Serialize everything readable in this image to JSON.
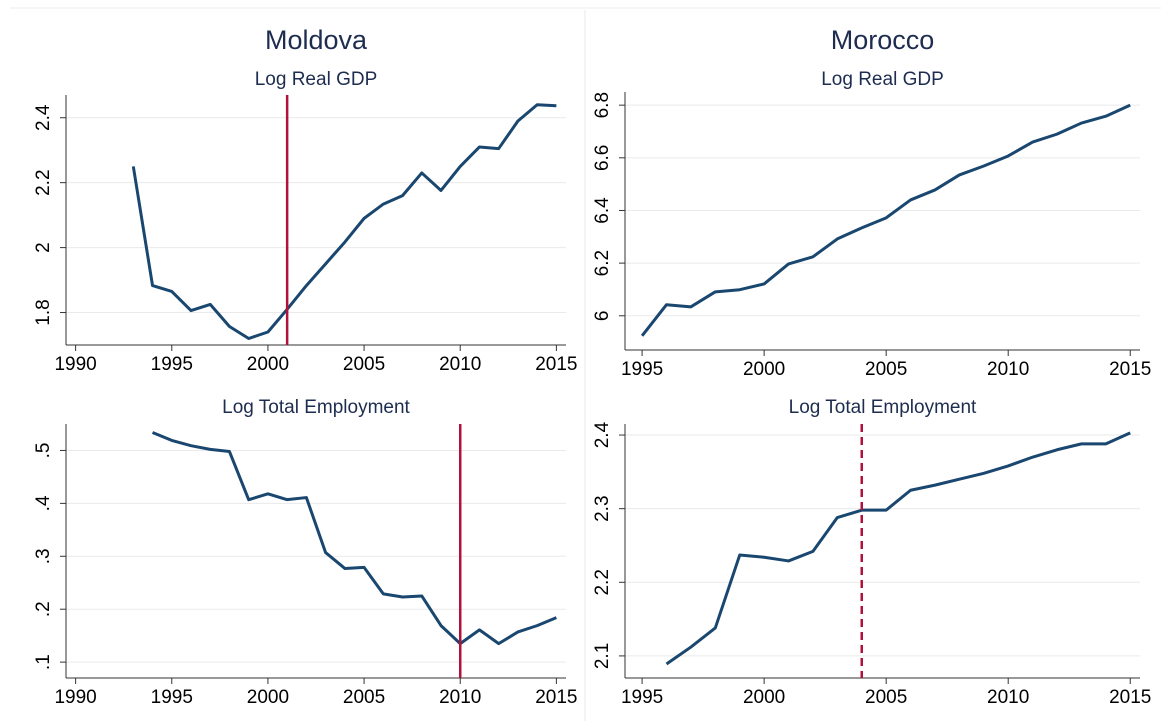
{
  "chart_data": [
    {
      "type": "line",
      "title": "Moldova",
      "subtitle": "Log Real GDP",
      "x": [
        1993,
        1994,
        1995,
        1996,
        1997,
        1998,
        1999,
        2000,
        2001,
        2002,
        2003,
        2004,
        2005,
        2006,
        2007,
        2008,
        2009,
        2010,
        2011,
        2012,
        2013,
        2014,
        2015
      ],
      "series": [
        {
          "color": "#1a476f",
          "values": [
            2.25,
            1.883,
            1.865,
            1.806,
            1.825,
            1.757,
            1.72,
            1.74,
            1.81,
            1.883,
            1.95,
            2.017,
            2.09,
            2.134,
            2.16,
            2.23,
            2.176,
            2.25,
            2.31,
            2.305,
            2.39,
            2.44,
            2.437
          ]
        }
      ],
      "xlim": [
        1989.5,
        2015.5
      ],
      "xticks": [
        1990,
        1995,
        2000,
        2005,
        2010,
        2015
      ],
      "ylim": [
        1.7,
        2.47
      ],
      "yticks": [
        1.8,
        2,
        2.2,
        2.4
      ],
      "grid": true,
      "vlines": [
        {
          "x": 2001,
          "style": "solid",
          "color": "#b0123c"
        }
      ]
    },
    {
      "type": "line",
      "title": "Morocco",
      "subtitle": "Log Real GDP",
      "x": [
        1995,
        1996,
        1997,
        1998,
        1999,
        2000,
        2001,
        2002,
        2003,
        2004,
        2005,
        2006,
        2007,
        2008,
        2009,
        2010,
        2011,
        2012,
        2013,
        2014,
        2015
      ],
      "series": [
        {
          "color": "#1a476f",
          "values": [
            5.924,
            6.042,
            6.034,
            6.091,
            6.099,
            6.121,
            6.197,
            6.224,
            6.292,
            6.334,
            6.372,
            6.44,
            6.478,
            6.535,
            6.569,
            6.607,
            6.66,
            6.69,
            6.732,
            6.758,
            6.8
          ]
        }
      ],
      "xlim": [
        1994.3,
        2015.4
      ],
      "xticks": [
        1995,
        2000,
        2005,
        2010,
        2015
      ],
      "ylim": [
        5.87,
        6.85
      ],
      "yticks": [
        6,
        6.2,
        6.4,
        6.6,
        6.8
      ],
      "grid": true,
      "vlines": []
    },
    {
      "type": "line",
      "subtitle": "Log Total Employment",
      "x": [
        1994,
        1995,
        1996,
        1997,
        1998,
        1999,
        2000,
        2001,
        2002,
        2003,
        2004,
        2005,
        2006,
        2007,
        2008,
        2009,
        2010,
        2011,
        2012,
        2013,
        2014,
        2015
      ],
      "series": [
        {
          "color": "#1a476f",
          "values": [
            0.534,
            0.519,
            0.509,
            0.502,
            0.498,
            0.407,
            0.418,
            0.407,
            0.411,
            0.307,
            0.277,
            0.279,
            0.229,
            0.223,
            0.225,
            0.169,
            0.135,
            0.161,
            0.135,
            0.157,
            0.169,
            0.184
          ]
        }
      ],
      "xlim": [
        1989.5,
        2015.5
      ],
      "xticks": [
        1990,
        1995,
        2000,
        2005,
        2010,
        2015
      ],
      "ylim": [
        0.07,
        0.55
      ],
      "yticks": [
        {
          "value": 0.1,
          "label": ".1"
        },
        {
          "value": 0.2,
          "label": ".2"
        },
        {
          "value": 0.3,
          "label": ".3"
        },
        {
          "value": 0.4,
          "label": ".4"
        },
        {
          "value": 0.5,
          "label": ".5"
        }
      ],
      "grid": true,
      "vlines": [
        {
          "x": 2010,
          "style": "solid",
          "color": "#b0123c"
        }
      ]
    },
    {
      "type": "line",
      "subtitle": "Log Total Employment",
      "x": [
        1996,
        1997,
        1998,
        1999,
        2000,
        2001,
        2002,
        2003,
        2004,
        2005,
        2006,
        2007,
        2008,
        2009,
        2010,
        2011,
        2012,
        2013,
        2014,
        2015
      ],
      "series": [
        {
          "color": "#1a476f",
          "values": [
            2.089,
            2.112,
            2.138,
            2.237,
            2.234,
            2.229,
            2.242,
            2.288,
            2.298,
            2.298,
            2.325,
            2.332,
            2.34,
            2.348,
            2.358,
            2.37,
            2.38,
            2.388,
            2.388,
            2.403
          ]
        }
      ],
      "xlim": [
        1994.3,
        2015.4
      ],
      "xticks": [
        1995,
        2000,
        2005,
        2010,
        2015
      ],
      "ylim": [
        2.07,
        2.415
      ],
      "yticks": [
        2.1,
        2.2,
        2.3,
        2.4
      ],
      "grid": true,
      "vlines": [
        {
          "x": 2004,
          "style": "dashed",
          "color": "#b0123c"
        }
      ]
    }
  ]
}
